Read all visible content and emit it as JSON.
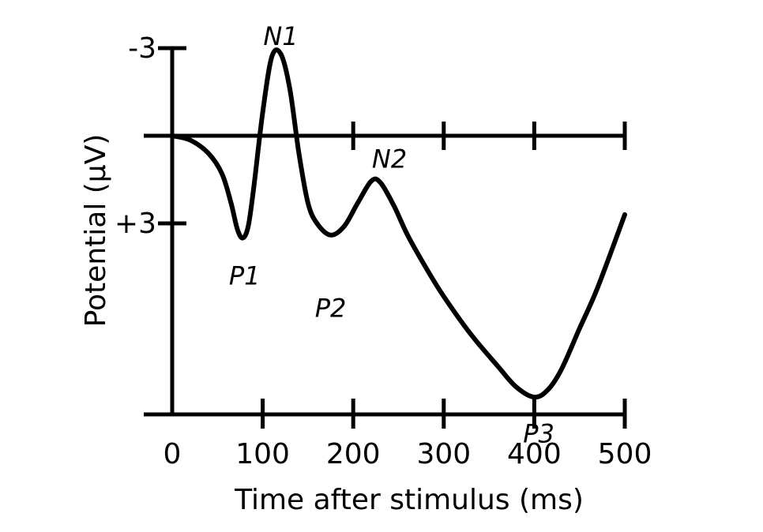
{
  "chart_data": {
    "type": "line",
    "title": "",
    "xlabel": "Time after stimulus (ms)",
    "ylabel": "Potential (µV)",
    "xlim": [
      0,
      500
    ],
    "ylim": [
      -3,
      9.5
    ],
    "y_axis_inverted": true,
    "grid": false,
    "x_ticks": [
      {
        "value": 0,
        "label": "0"
      },
      {
        "value": 100,
        "label": "100"
      },
      {
        "value": 200,
        "label": "200"
      },
      {
        "value": 300,
        "label": "300"
      },
      {
        "value": 400,
        "label": "400"
      },
      {
        "value": 500,
        "label": "500"
      }
    ],
    "y_ticks": [
      {
        "value": -3,
        "label": "-3"
      },
      {
        "value": 3,
        "label": "+3"
      }
    ],
    "series": [
      {
        "color": "#000000",
        "x": [
          0,
          20,
          40,
          55,
          65,
          72,
          78,
          84,
          90,
          100,
          110,
          120,
          130,
          140,
          150,
          160,
          175,
          190,
          205,
          220,
          230,
          245,
          260,
          280,
          300,
          330,
          360,
          380,
          400,
          415,
          430,
          450,
          470,
          500
        ],
        "y": [
          0,
          0.15,
          0.6,
          1.3,
          2.3,
          3.2,
          3.5,
          3.1,
          1.8,
          -0.8,
          -2.7,
          -2.8,
          -1.6,
          0.6,
          2.3,
          3.0,
          3.4,
          3.1,
          2.3,
          1.55,
          1.6,
          2.4,
          3.4,
          4.5,
          5.5,
          6.8,
          7.9,
          8.6,
          8.95,
          8.7,
          8.0,
          6.6,
          5.2,
          2.7
        ]
      }
    ],
    "annotations": [
      {
        "text": "N1",
        "x": 120,
        "y": -3.4
      },
      {
        "text": "P1",
        "x": 80,
        "y": 4.8
      },
      {
        "text": "N2",
        "x": 240,
        "y": 0.8
      },
      {
        "text": "P2",
        "x": 175,
        "y": 5.9
      },
      {
        "text": "P3",
        "x": 405,
        "y": 10.2
      }
    ]
  }
}
